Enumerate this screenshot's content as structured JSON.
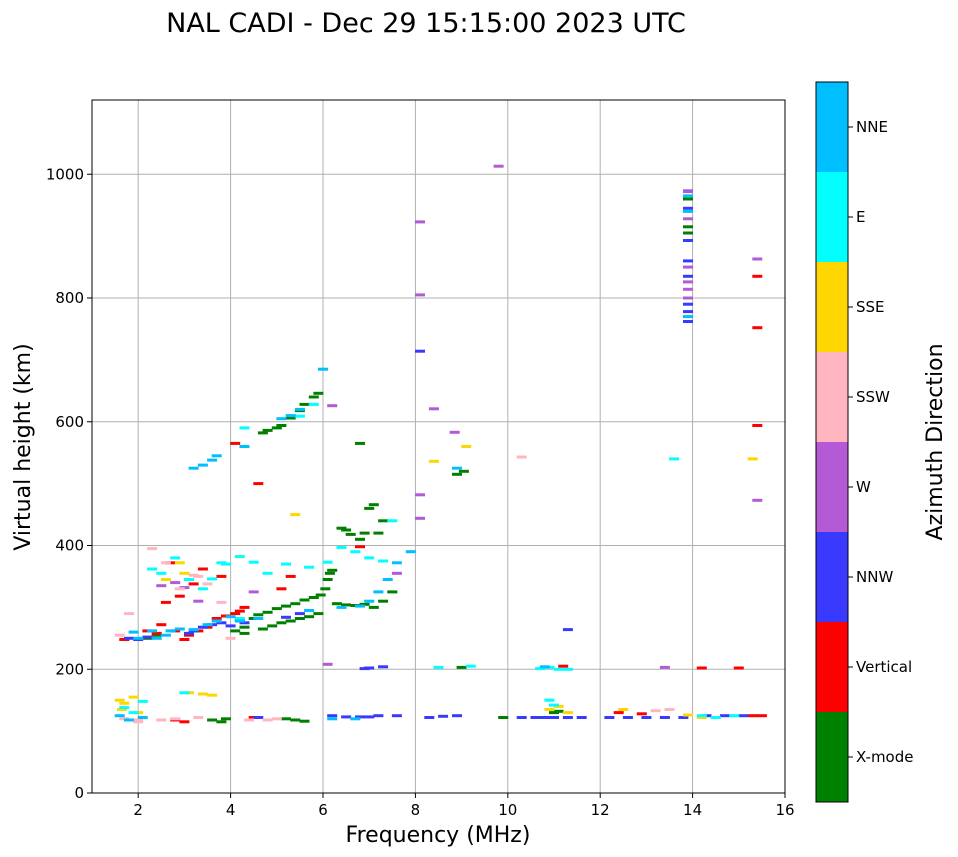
{
  "chart_data": {
    "type": "scatter",
    "title": "NAL CADI - Dec 29 15:15:00 2023 UTC",
    "xlabel": "Frequency (MHz)",
    "ylabel": "Virtual height (km)",
    "xlim": [
      1,
      16
    ],
    "ylim": [
      0,
      1120
    ],
    "xticks": [
      2,
      4,
      6,
      8,
      10,
      12,
      14,
      16
    ],
    "yticks": [
      0,
      200,
      400,
      600,
      800,
      1000
    ],
    "grid": true,
    "colorbar": {
      "label": "Azimuth Direction",
      "categories": [
        "X-mode",
        "Vertical",
        "NNW",
        "W",
        "SSW",
        "SSE",
        "E",
        "NNE"
      ],
      "colors": [
        "#008000",
        "#ff0000",
        "#3a3aff",
        "#b45ad6",
        "#ffb6c1",
        "#ffd700",
        "#00ffff",
        "#00bfff"
      ]
    },
    "series": [
      {
        "name": "X-mode",
        "color": "#008000",
        "points": [
          [
            2.2,
            250
          ],
          [
            2.4,
            255
          ],
          [
            3.6,
            118
          ],
          [
            3.8,
            115
          ],
          [
            3.9,
            120
          ],
          [
            4.2,
            280
          ],
          [
            4.3,
            268
          ],
          [
            4.5,
            282
          ],
          [
            4.6,
            288
          ],
          [
            4.8,
            292
          ],
          [
            5.0,
            298
          ],
          [
            5.2,
            302
          ],
          [
            5.4,
            306
          ],
          [
            5.6,
            312
          ],
          [
            5.8,
            316
          ],
          [
            5.95,
            320
          ],
          [
            6.05,
            330
          ],
          [
            6.1,
            345
          ],
          [
            6.15,
            355
          ],
          [
            6.2,
            360
          ],
          [
            5.1,
            275
          ],
          [
            5.3,
            278
          ],
          [
            5.5,
            282
          ],
          [
            5.7,
            285
          ],
          [
            5.9,
            290
          ],
          [
            6.3,
            306
          ],
          [
            6.5,
            304
          ],
          [
            6.7,
            303
          ],
          [
            6.9,
            305
          ],
          [
            7.1,
            300
          ],
          [
            7.3,
            310
          ],
          [
            7.5,
            325
          ],
          [
            5.2,
            120
          ],
          [
            5.4,
            118
          ],
          [
            5.6,
            116
          ],
          [
            4.7,
            265
          ],
          [
            4.9,
            270
          ],
          [
            4.1,
            262
          ],
          [
            4.3,
            258
          ],
          [
            4.7,
            582
          ],
          [
            4.8,
            586
          ],
          [
            5.0,
            590
          ],
          [
            5.1,
            594
          ],
          [
            5.3,
            606
          ],
          [
            5.5,
            618
          ],
          [
            5.6,
            628
          ],
          [
            5.8,
            640
          ],
          [
            5.9,
            646
          ],
          [
            6.4,
            428
          ],
          [
            6.5,
            425
          ],
          [
            6.6,
            418
          ],
          [
            6.8,
            410
          ],
          [
            7.0,
            460
          ],
          [
            7.1,
            466
          ],
          [
            7.3,
            440
          ],
          [
            7.2,
            420
          ],
          [
            6.8,
            565
          ],
          [
            8.9,
            515
          ],
          [
            9.05,
            520
          ],
          [
            9.0,
            203
          ],
          [
            9.9,
            122
          ],
          [
            11.0,
            130
          ],
          [
            11.1,
            132
          ],
          [
            13.9,
            960
          ],
          [
            13.9,
            915
          ],
          [
            13.9,
            905
          ],
          [
            6.9,
            420
          ]
        ]
      },
      {
        "name": "Vertical",
        "color": "#ff0000",
        "points": [
          [
            1.7,
            248
          ],
          [
            2.2,
            262
          ],
          [
            2.4,
            258
          ],
          [
            2.5,
            272
          ],
          [
            2.8,
            262
          ],
          [
            3.0,
            248
          ],
          [
            3.1,
            255
          ],
          [
            3.3,
            262
          ],
          [
            3.5,
            268
          ],
          [
            3.7,
            282
          ],
          [
            3.9,
            286
          ],
          [
            4.1,
            290
          ],
          [
            4.2,
            294
          ],
          [
            4.3,
            300
          ],
          [
            2.6,
            308
          ],
          [
            2.9,
            318
          ],
          [
            3.2,
            338
          ],
          [
            3.4,
            362
          ],
          [
            4.6,
            500
          ],
          [
            4.1,
            565
          ],
          [
            3.8,
            350
          ],
          [
            2.7,
            372
          ],
          [
            5.1,
            330
          ],
          [
            5.3,
            350
          ],
          [
            4.5,
            122
          ],
          [
            2.8,
            118
          ],
          [
            3.0,
            115
          ],
          [
            6.8,
            398
          ],
          [
            11.2,
            205
          ],
          [
            12.4,
            130
          ],
          [
            12.9,
            128
          ],
          [
            14.2,
            202
          ],
          [
            15.0,
            202
          ],
          [
            15.3,
            125
          ],
          [
            15.5,
            125
          ],
          [
            15.4,
            835
          ],
          [
            15.4,
            752
          ],
          [
            15.4,
            594
          ]
        ]
      },
      {
        "name": "NNW",
        "color": "#3a3aff",
        "points": [
          [
            1.8,
            250
          ],
          [
            2.0,
            248
          ],
          [
            2.2,
            252
          ],
          [
            3.1,
            258
          ],
          [
            3.2,
            262
          ],
          [
            3.4,
            268
          ],
          [
            3.6,
            272
          ],
          [
            3.8,
            275
          ],
          [
            4.0,
            270
          ],
          [
            4.3,
            275
          ],
          [
            4.6,
            122
          ],
          [
            6.2,
            125
          ],
          [
            6.5,
            123
          ],
          [
            6.8,
            123
          ],
          [
            7.0,
            123
          ],
          [
            7.2,
            125
          ],
          [
            7.6,
            125
          ],
          [
            8.3,
            122
          ],
          [
            8.6,
            124
          ],
          [
            8.9,
            125
          ],
          [
            10.3,
            122
          ],
          [
            10.6,
            122
          ],
          [
            10.8,
            122
          ],
          [
            11.0,
            122
          ],
          [
            11.3,
            122
          ],
          [
            11.6,
            122
          ],
          [
            12.2,
            122
          ],
          [
            12.6,
            122
          ],
          [
            13.0,
            122
          ],
          [
            13.4,
            122
          ],
          [
            13.8,
            122
          ],
          [
            14.3,
            125
          ],
          [
            14.7,
            125
          ],
          [
            15.1,
            125
          ],
          [
            8.1,
            714
          ],
          [
            11.3,
            264
          ],
          [
            7.0,
            202
          ],
          [
            7.3,
            204
          ],
          [
            6.9,
            201
          ],
          [
            13.9,
            973
          ],
          [
            13.9,
            945
          ],
          [
            13.9,
            893
          ],
          [
            13.9,
            860
          ],
          [
            13.9,
            835
          ],
          [
            13.9,
            790
          ],
          [
            13.9,
            778
          ],
          [
            13.9,
            762
          ],
          [
            5.5,
            290
          ],
          [
            5.2,
            284
          ]
        ]
      },
      {
        "name": "W",
        "color": "#b45ad6",
        "points": [
          [
            2.5,
            335
          ],
          [
            2.8,
            340
          ],
          [
            3.0,
            332
          ],
          [
            3.3,
            310
          ],
          [
            6.2,
            626
          ],
          [
            8.1,
            923
          ],
          [
            8.1,
            805
          ],
          [
            8.1,
            482
          ],
          [
            8.1,
            444
          ],
          [
            8.4,
            621
          ],
          [
            8.85,
            583
          ],
          [
            9.8,
            1013
          ],
          [
            7.6,
            355
          ],
          [
            13.4,
            203
          ],
          [
            13.9,
            972
          ],
          [
            13.9,
            928
          ],
          [
            13.9,
            850
          ],
          [
            13.9,
            826
          ],
          [
            13.9,
            814
          ],
          [
            13.9,
            800
          ],
          [
            15.4,
            863
          ],
          [
            15.4,
            473
          ],
          [
            4.5,
            325
          ],
          [
            6.1,
            208
          ]
        ]
      },
      {
        "name": "SSW",
        "color": "#ffb6c1",
        "points": [
          [
            1.6,
            255
          ],
          [
            1.8,
            290
          ],
          [
            2.3,
            395
          ],
          [
            2.6,
            372
          ],
          [
            2.9,
            330
          ],
          [
            3.3,
            350
          ],
          [
            3.5,
            338
          ],
          [
            3.8,
            308
          ],
          [
            4.0,
            250
          ],
          [
            1.7,
            120
          ],
          [
            2.0,
            115
          ],
          [
            2.5,
            118
          ],
          [
            2.8,
            120
          ],
          [
            3.3,
            122
          ],
          [
            4.4,
            118
          ],
          [
            4.8,
            118
          ],
          [
            5.0,
            120
          ],
          [
            10.3,
            543
          ],
          [
            13.2,
            133
          ],
          [
            13.5,
            135
          ],
          [
            3.2,
            352
          ],
          [
            2.0,
            118
          ]
        ]
      },
      {
        "name": "SSE",
        "color": "#ffd700",
        "points": [
          [
            1.6,
            150
          ],
          [
            1.7,
            145
          ],
          [
            1.9,
            155
          ],
          [
            2.0,
            130
          ],
          [
            3.1,
            162
          ],
          [
            3.4,
            160
          ],
          [
            3.6,
            158
          ],
          [
            3.0,
            355
          ],
          [
            2.9,
            372
          ],
          [
            5.4,
            450
          ],
          [
            8.4,
            536
          ],
          [
            9.1,
            560
          ],
          [
            10.9,
            135
          ],
          [
            11.1,
            140
          ],
          [
            11.3,
            130
          ],
          [
            12.5,
            135
          ],
          [
            13.9,
            126
          ],
          [
            14.2,
            122
          ],
          [
            14.5,
            122
          ],
          [
            15.3,
            540
          ],
          [
            2.6,
            345
          ],
          [
            1.65,
            135
          ]
        ]
      },
      {
        "name": "E",
        "color": "#00ffff",
        "points": [
          [
            1.7,
            138
          ],
          [
            1.9,
            130
          ],
          [
            2.1,
            148
          ],
          [
            2.3,
            362
          ],
          [
            2.5,
            355
          ],
          [
            2.8,
            380
          ],
          [
            3.1,
            345
          ],
          [
            3.4,
            330
          ],
          [
            3.6,
            346
          ],
          [
            3.8,
            372
          ],
          [
            4.2,
            382
          ],
          [
            4.5,
            373
          ],
          [
            4.8,
            355
          ],
          [
            5.2,
            370
          ],
          [
            5.7,
            365
          ],
          [
            6.1,
            373
          ],
          [
            6.4,
            397
          ],
          [
            6.7,
            390
          ],
          [
            7.0,
            380
          ],
          [
            7.3,
            375
          ],
          [
            7.5,
            440
          ],
          [
            8.5,
            203
          ],
          [
            9.2,
            205
          ],
          [
            10.7,
            201
          ],
          [
            10.9,
            203
          ],
          [
            11.1,
            200
          ],
          [
            11.3,
            200
          ],
          [
            13.6,
            540
          ],
          [
            14.2,
            125
          ],
          [
            14.5,
            122
          ],
          [
            14.9,
            125
          ],
          [
            4.3,
            590
          ],
          [
            5.8,
            628
          ],
          [
            5.5,
            609
          ],
          [
            3.0,
            162
          ],
          [
            10.9,
            150
          ],
          [
            11.0,
            142
          ],
          [
            3.9,
            370
          ],
          [
            4.2,
            282
          ]
        ]
      },
      {
        "name": "NNE",
        "color": "#00bfff",
        "points": [
          [
            1.9,
            260
          ],
          [
            2.0,
            250
          ],
          [
            2.3,
            262
          ],
          [
            2.4,
            250
          ],
          [
            2.6,
            255
          ],
          [
            2.7,
            262
          ],
          [
            2.9,
            265
          ],
          [
            3.2,
            264
          ],
          [
            3.5,
            272
          ],
          [
            3.7,
            278
          ],
          [
            4.0,
            285
          ],
          [
            4.2,
            278
          ],
          [
            4.6,
            282
          ],
          [
            1.6,
            125
          ],
          [
            1.8,
            118
          ],
          [
            2.1,
            122
          ],
          [
            3.2,
            525
          ],
          [
            3.4,
            530
          ],
          [
            3.6,
            538
          ],
          [
            3.7,
            545
          ],
          [
            4.3,
            560
          ],
          [
            5.1,
            605
          ],
          [
            5.3,
            610
          ],
          [
            5.5,
            620
          ],
          [
            6.0,
            685
          ],
          [
            6.8,
            302
          ],
          [
            7.0,
            310
          ],
          [
            7.2,
            325
          ],
          [
            7.4,
            345
          ],
          [
            7.6,
            372
          ],
          [
            7.9,
            390
          ],
          [
            6.2,
            120
          ],
          [
            6.7,
            120
          ],
          [
            8.9,
            525
          ],
          [
            10.8,
            204
          ],
          [
            13.9,
            965
          ],
          [
            13.9,
            940
          ],
          [
            13.9,
            770
          ],
          [
            6.4,
            300
          ],
          [
            5.7,
            295
          ]
        ]
      }
    ]
  }
}
